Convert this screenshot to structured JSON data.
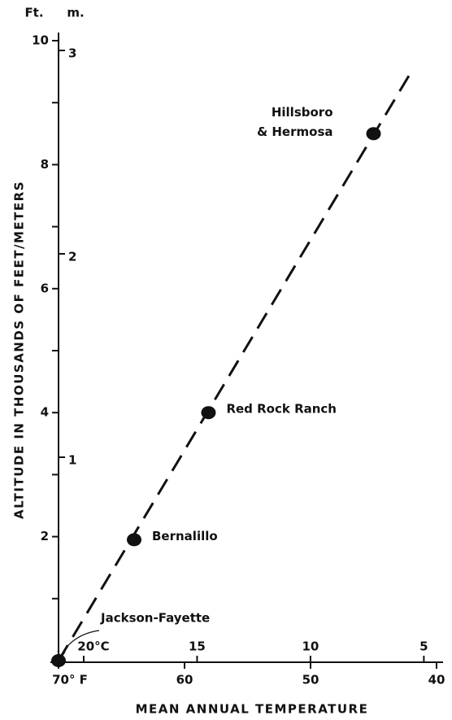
{
  "chart_data": {
    "type": "scatter",
    "y_label": "ALTITUDE IN THOUSANDS OF FEET/METERS",
    "x_label": "MEAN ANNUAL TEMPERATURE",
    "y_unit": "Ft.",
    "y2_unit": "m.",
    "x": [
      70,
      64,
      58.1,
      45
    ],
    "values": [
      0,
      1.95,
      4.0,
      8.5
    ],
    "point_labels": [
      [
        "Jackson-Fayette"
      ],
      [
        "Bernalillo"
      ],
      [
        "Red Rock Ranch"
      ],
      [
        "Hillsboro",
        "& Hermosa"
      ]
    ],
    "color": "#111111",
    "trend": {
      "x": [
        70,
        42
      ],
      "values": [
        0,
        9.5
      ],
      "dashed": true
    },
    "xlim": [
      70,
      40
    ],
    "xticks": [
      {
        "value": 70,
        "label": "70° F"
      },
      60,
      50,
      40
    ],
    "x2lim": [
      21.11,
      4.44
    ],
    "x2ticks": [
      {
        "value": 20,
        "label": "20°C"
      },
      15,
      10,
      5
    ],
    "ylim": [
      0,
      10
    ],
    "yticks": [
      2,
      4,
      6,
      8,
      10
    ],
    "yminor_ticks": [
      1,
      3,
      5,
      7,
      9
    ],
    "y2lim": [
      0,
      3.048
    ],
    "y2ticks": [
      1,
      2,
      3
    ],
    "grid": false
  }
}
